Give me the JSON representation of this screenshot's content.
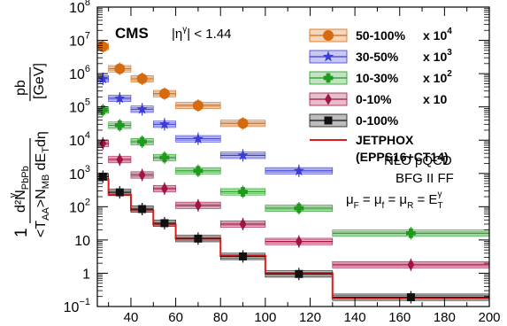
{
  "chart_data": {
    "type": "scatter",
    "title": "",
    "experiment_label": "CMS",
    "selection_label": "|η",
    "selection_sup": "γ",
    "selection_cut": "| < 1.44",
    "ylabel": {
      "prefix": "1",
      "frac_num": "d²N",
      "frac_num_sub": "PbPb",
      "frac_num_sup": "γ",
      "frac_den": "<T",
      "frac_den_sub": "AA",
      "frac_den_mid": ">N",
      "frac_den_sub2": "MB",
      "frac_den_tail": " dE",
      "frac_den_sub3": "T",
      "frac_den_end": "dη",
      "unit_num": "pb",
      "unit_den": "GeV"
    },
    "xlabel": "",
    "xlim": [
      25,
      200
    ],
    "ylim": [
      0.1,
      100000000
    ],
    "yscale": "log",
    "x_ticks": [
      "40",
      "60",
      "80",
      "100",
      "120",
      "140",
      "160",
      "180",
      "200"
    ],
    "y_ticks": [
      {
        "base": "10",
        "exp": "−1",
        "value": 0.1
      },
      {
        "base": "1",
        "exp": "",
        "value": 1
      },
      {
        "base": "10",
        "exp": "",
        "value": 10
      },
      {
        "base": "10",
        "exp": "2",
        "value": 100
      },
      {
        "base": "10",
        "exp": "3",
        "value": 1000
      },
      {
        "base": "10",
        "exp": "4",
        "value": 10000
      },
      {
        "base": "10",
        "exp": "5",
        "value": 100000
      },
      {
        "base": "10",
        "exp": "6",
        "value": 1000000
      },
      {
        "base": "10",
        "exp": "7",
        "value": 10000000
      },
      {
        "base": "10",
        "exp": "8",
        "value": 100000000
      }
    ],
    "bins": [
      [
        25,
        30
      ],
      [
        30,
        40
      ],
      [
        40,
        50
      ],
      [
        50,
        60
      ],
      [
        60,
        80
      ],
      [
        80,
        100
      ],
      [
        100,
        130
      ],
      [
        130,
        200
      ]
    ],
    "series": [
      {
        "name": "50-100%",
        "factor": "x 10",
        "factor_sup": "4",
        "color": "#d66a11",
        "marker": "circle",
        "x": [
          27.5,
          35,
          45,
          55,
          70,
          90
        ],
        "y": [
          6500000,
          1400000,
          700000,
          250000,
          110000,
          32000
        ]
      },
      {
        "name": "30-50%",
        "factor": "x 10",
        "factor_sup": "3",
        "color": "#3b3bd6",
        "marker": "star",
        "x": [
          27.5,
          35,
          45,
          55,
          70,
          90,
          115
        ],
        "y": [
          700000,
          180000,
          85000,
          30000,
          11000,
          3500,
          1200
        ]
      },
      {
        "name": "10-30%",
        "factor": "x 10",
        "factor_sup": "2",
        "color": "#1f9a1f",
        "marker": "cross",
        "x": [
          27.5,
          35,
          45,
          55,
          70,
          90,
          115,
          165
        ],
        "y": [
          80000,
          28000,
          9000,
          3000,
          1200,
          280,
          90,
          16
        ]
      },
      {
        "name": "0-10%",
        "factor": "x 10",
        "factor_sup": "",
        "color": "#a01345",
        "marker": "diamond",
        "x": [
          27.5,
          35,
          45,
          55,
          70,
          90,
          115,
          165
        ],
        "y": [
          8000,
          2600,
          900,
          350,
          110,
          30,
          9,
          1.8
        ]
      },
      {
        "name": "0-100%",
        "factor": "",
        "factor_sup": "",
        "color": "#111111",
        "marker": "square",
        "x": [
          27.5,
          35,
          45,
          55,
          70,
          90,
          115,
          165
        ],
        "y": [
          800,
          270,
          85,
          32,
          11,
          3.2,
          0.95,
          0.19
        ]
      }
    ],
    "theory": {
      "name": "JETPHOX",
      "detail": "(EPPS16+CT14)",
      "color": "#e01b1b",
      "y": [
        650,
        230,
        78,
        29,
        11,
        3.3,
        1.0,
        0.18
      ]
    },
    "notes": [
      "NLO pQCD",
      "BFG II FF"
    ],
    "scale_note": {
      "mu": "μ",
      "sub_F": "F",
      "sub_f": "f",
      "sub_R": "R",
      "eq": " = ",
      "E": "E",
      "E_sub": "T",
      "E_sup": "γ"
    },
    "legend_placement": "top-right",
    "grid": false
  }
}
